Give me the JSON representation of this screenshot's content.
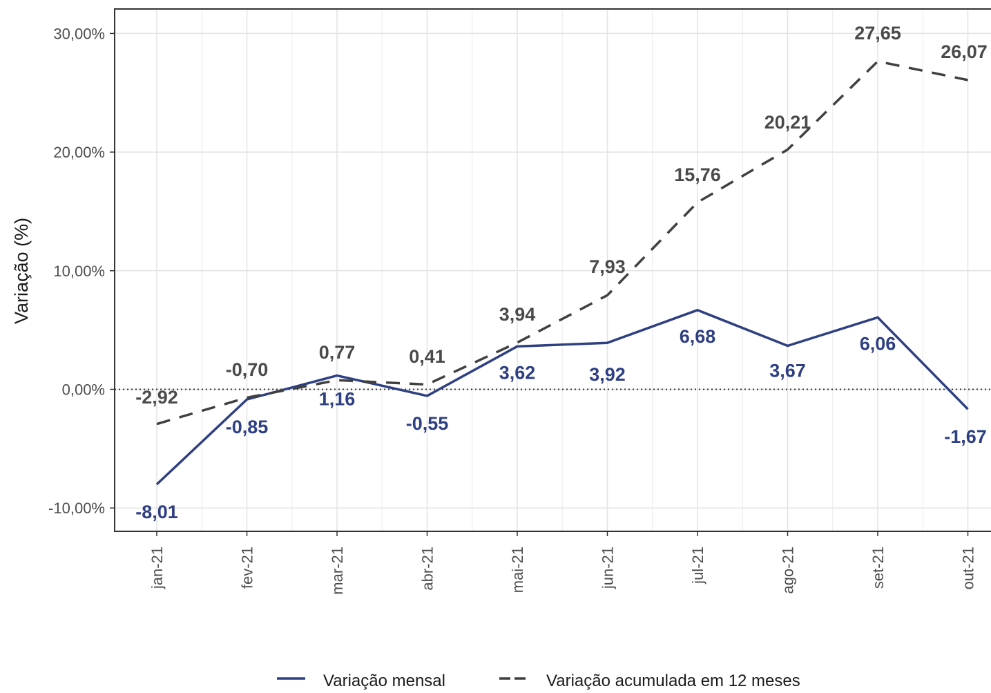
{
  "chart_data": {
    "type": "line",
    "categories": [
      "jan-21",
      "fev-21",
      "mar-21",
      "abr-21",
      "mai-21",
      "jun-21",
      "jul-21",
      "ago-21",
      "set-21",
      "out-21"
    ],
    "series": [
      {
        "name": "Variação mensal",
        "style": "solid",
        "color": "#2e3f82",
        "values": [
          -8.01,
          -0.85,
          1.16,
          -0.55,
          3.62,
          3.92,
          6.68,
          3.67,
          6.06,
          -1.67
        ],
        "labels": [
          "-8,01",
          "-0,85",
          "1,16",
          "-0,55",
          "3,62",
          "3,92",
          "6,68",
          "3,67",
          "6,06",
          "-1,67"
        ]
      },
      {
        "name": "Variação acumulada em 12 meses",
        "style": "dashed",
        "color": "#404040",
        "values": [
          -2.92,
          -0.7,
          0.77,
          0.41,
          3.94,
          7.93,
          15.76,
          20.21,
          27.65,
          26.07
        ],
        "labels": [
          "-2,92",
          "-0,70",
          "0,77",
          "0,41",
          "3,94",
          "7,93",
          "15,76",
          "20,21",
          "27,65",
          "26,07"
        ]
      }
    ],
    "title": "",
    "xlabel": "",
    "ylabel": "Variação (%)",
    "ylim": [
      -12,
      32
    ],
    "yticks": [
      -10,
      0,
      10,
      20,
      30
    ],
    "ytick_labels": [
      "-10,00%",
      "0,00%",
      "10,00%",
      "20,00%",
      "30,00%"
    ],
    "reference_line": 0,
    "grid": true,
    "legend_position": "bottom"
  }
}
